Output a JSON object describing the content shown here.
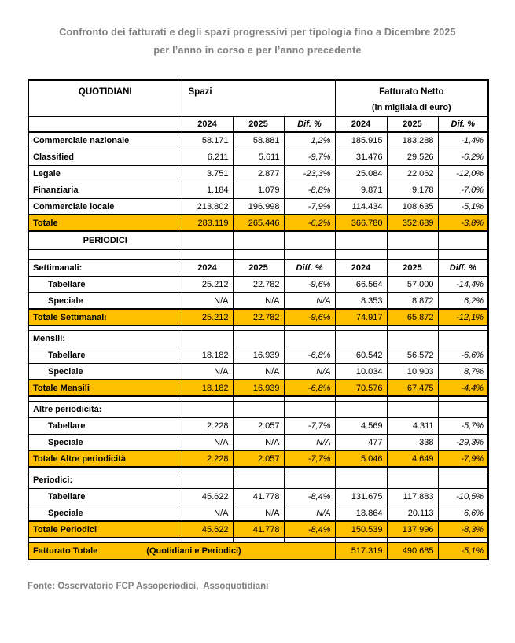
{
  "title": {
    "line1": "Confronto dei fatturati e degli spazi progressivi per tipologia fino a Dicembre 2025",
    "line2": "per l’anno in corso e per l’anno precedente"
  },
  "header": {
    "col_main": "QUOTIDIANI",
    "spazi": "Spazi",
    "fatturato": "Fatturato Netto",
    "fatturato_unit": "(in migliaia di euro)",
    "years": [
      "2024",
      "2025",
      "Dif. %",
      "2024",
      "2025",
      "Dif. %"
    ]
  },
  "rows": [
    {
      "kind": "data",
      "label": "Commerciale nazionale",
      "cells": [
        "58.171",
        "58.881",
        "1,2%",
        "185.915",
        "183.288",
        "-1,4%"
      ]
    },
    {
      "kind": "data",
      "label": "Classified",
      "cells": [
        "6.211",
        "5.611",
        "-9,7%",
        "31.476",
        "29.526",
        "-6,2%"
      ]
    },
    {
      "kind": "data",
      "label": "Legale",
      "cells": [
        "3.751",
        "2.877",
        "-23,3%",
        "25.084",
        "22.062",
        "-12,0%"
      ]
    },
    {
      "kind": "data",
      "label": "Finanziaria",
      "cells": [
        "1.184",
        "1.079",
        "-8,8%",
        "9.871",
        "9.178",
        "-7,0%"
      ]
    },
    {
      "kind": "data",
      "label": "Commerciale locale",
      "cells": [
        "213.802",
        "196.998",
        "-7,9%",
        "114.434",
        "108.635",
        "-5,1%"
      ]
    },
    {
      "kind": "total",
      "label": "Totale",
      "cells": [
        "283.119",
        "265.446",
        "-6,2%",
        "366.780",
        "352.689",
        "-3,8%"
      ]
    },
    {
      "kind": "section",
      "label": "PERIODICI"
    },
    {
      "kind": "spacer"
    },
    {
      "kind": "subheader",
      "label": "Settimanali:",
      "cells": [
        "2024",
        "2025",
        "Diff. %",
        "2024",
        "2025",
        "Diff. %"
      ]
    },
    {
      "kind": "data",
      "indent": true,
      "label": "Tabellare",
      "cells": [
        "25.212",
        "22.782",
        "-9,6%",
        "66.564",
        "57.000",
        "-14,4%"
      ]
    },
    {
      "kind": "data",
      "indent": true,
      "label": "Speciale",
      "cells": [
        "N/A",
        "N/A",
        "N/A",
        "8.353",
        "8.872",
        "6,2%"
      ]
    },
    {
      "kind": "total",
      "label": "Totale Settimanali",
      "cells": [
        "25.212",
        "22.782",
        "-9,6%",
        "74.917",
        "65.872",
        "-12,1%"
      ]
    },
    {
      "kind": "gap"
    },
    {
      "kind": "group",
      "label": "Mensili:"
    },
    {
      "kind": "data",
      "indent": true,
      "label": "Tabellare",
      "cells": [
        "18.182",
        "16.939",
        "-6,8%",
        "60.542",
        "56.572",
        "-6,6%"
      ]
    },
    {
      "kind": "data",
      "indent": true,
      "label": "Speciale",
      "cells": [
        "N/A",
        "N/A",
        "N/A",
        "10.034",
        "10.903",
        "8,7%"
      ]
    },
    {
      "kind": "total",
      "label": "Totale Mensili",
      "cells": [
        "18.182",
        "16.939",
        "-6,8%",
        "70.576",
        "67.475",
        "-4,4%"
      ]
    },
    {
      "kind": "gap"
    },
    {
      "kind": "group",
      "label": "Altre periodicità:"
    },
    {
      "kind": "data",
      "indent": true,
      "label": "Tabellare",
      "cells": [
        "2.228",
        "2.057",
        "-7,7%",
        "4.569",
        "4.311",
        "-5,7%"
      ]
    },
    {
      "kind": "data",
      "indent": true,
      "label": "Speciale",
      "cells": [
        "N/A",
        "N/A",
        "N/A",
        "477",
        "338",
        "-29,3%"
      ]
    },
    {
      "kind": "total",
      "label": "Totale Altre periodicità",
      "cells": [
        "2.228",
        "2.057",
        "-7,7%",
        "5.046",
        "4.649",
        "-7,9%"
      ]
    },
    {
      "kind": "gap"
    },
    {
      "kind": "group",
      "label": "Periodici:"
    },
    {
      "kind": "data",
      "indent": true,
      "label": "Tabellare",
      "cells": [
        "45.622",
        "41.778",
        "-8,4%",
        "131.675",
        "117.883",
        "-10,5%"
      ]
    },
    {
      "kind": "data",
      "indent": true,
      "label": "Speciale",
      "cells": [
        "N/A",
        "N/A",
        "N/A",
        "18.864",
        "20.113",
        "6,6%"
      ]
    },
    {
      "kind": "total",
      "label": "Totale Periodici",
      "cells": [
        "45.622",
        "41.778",
        "-8,4%",
        "150.539",
        "137.996",
        "-8,3%"
      ]
    },
    {
      "kind": "gap"
    },
    {
      "kind": "grandtotal",
      "label": "Fatturato Totale",
      "label2": "(Quotidiani e Periodici)",
      "cells": [
        "517.319",
        "490.685",
        "-5,1%"
      ]
    }
  ],
  "footer": {
    "source": "Fonte: Osservatorio FCP Assoperiodici,  Assoquotidiani"
  },
  "colors": {
    "highlight": "#FFC000",
    "title_text": "#7F7F7F",
    "border": "#000000"
  }
}
